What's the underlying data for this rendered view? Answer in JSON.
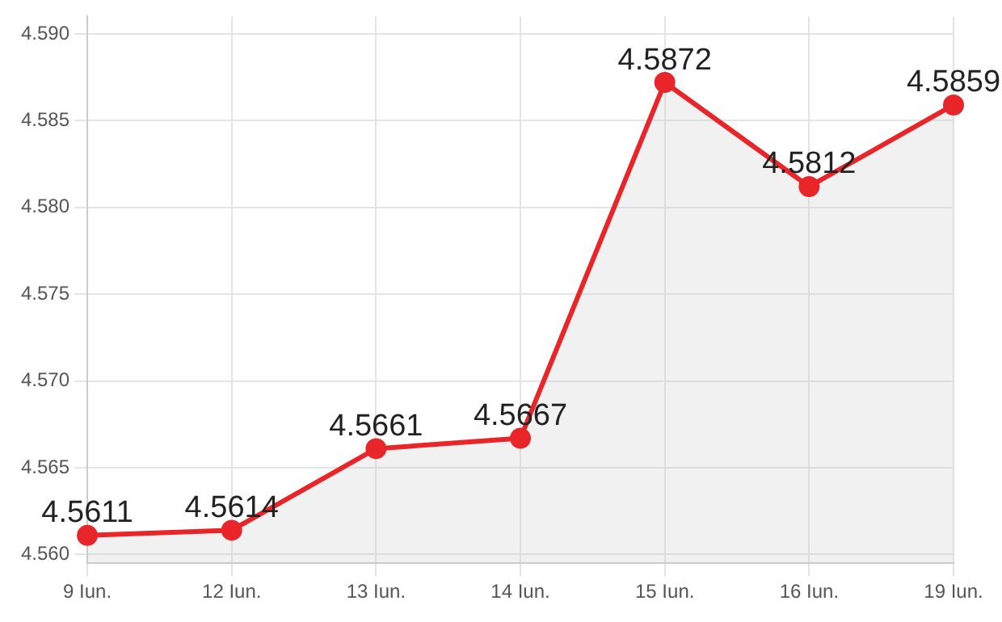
{
  "chart_data": {
    "type": "area",
    "categories": [
      "9 Iun.",
      "12 Iun.",
      "13 Iun.",
      "14 Iun.",
      "15 Iun.",
      "16 Iun.",
      "19 Iun."
    ],
    "series": [
      {
        "color": "#e8262a",
        "values": [
          4.5611,
          4.5614,
          4.5661,
          4.5667,
          4.5872,
          4.5812,
          4.5859
        ]
      }
    ],
    "ylim": [
      4.5595,
      4.591
    ],
    "yticks": [
      {
        "value": 4.56,
        "label": "4.560"
      },
      {
        "value": 4.565,
        "label": "4.565"
      },
      {
        "value": 4.57,
        "label": "4.570"
      },
      {
        "value": 4.575,
        "label": "4.575"
      },
      {
        "value": 4.58,
        "label": "4.580"
      },
      {
        "value": 4.585,
        "label": "4.585"
      },
      {
        "value": 4.59,
        "label": "4.590"
      }
    ],
    "grid": true,
    "marker": "circle",
    "data_labels": true,
    "legend": false
  }
}
